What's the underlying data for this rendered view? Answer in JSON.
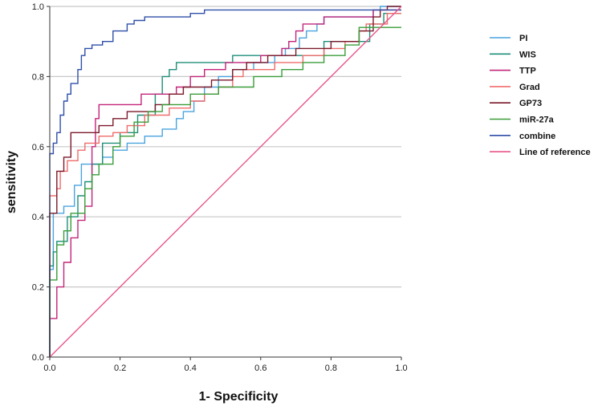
{
  "chart_data": {
    "type": "line",
    "title": "",
    "xlabel": "1- Specificity",
    "ylabel": "sensitivity",
    "xlim": [
      0,
      1
    ],
    "ylim": [
      0,
      1
    ],
    "grid": "horizontal",
    "legend_position": "right",
    "xticks": [
      "0.0",
      "0.2",
      "0.4",
      "0.6",
      "0.8",
      "1.0"
    ],
    "yticks": [
      "0.0",
      "0.2",
      "0.4",
      "0.6",
      "0.8",
      "1.0"
    ],
    "series": [
      {
        "name": "PI",
        "color": "#4aa3df",
        "points": [
          [
            0,
            0
          ],
          [
            0,
            0.25
          ],
          [
            0.01,
            0.25
          ],
          [
            0.01,
            0.41
          ],
          [
            0.04,
            0.41
          ],
          [
            0.04,
            0.43
          ],
          [
            0.07,
            0.43
          ],
          [
            0.07,
            0.49
          ],
          [
            0.09,
            0.49
          ],
          [
            0.09,
            0.55
          ],
          [
            0.15,
            0.55
          ],
          [
            0.15,
            0.57
          ],
          [
            0.18,
            0.57
          ],
          [
            0.18,
            0.59
          ],
          [
            0.22,
            0.59
          ],
          [
            0.22,
            0.61
          ],
          [
            0.27,
            0.61
          ],
          [
            0.27,
            0.63
          ],
          [
            0.32,
            0.63
          ],
          [
            0.32,
            0.65
          ],
          [
            0.36,
            0.65
          ],
          [
            0.36,
            0.68
          ],
          [
            0.38,
            0.68
          ],
          [
            0.38,
            0.7
          ],
          [
            0.41,
            0.7
          ],
          [
            0.41,
            0.73
          ],
          [
            0.44,
            0.73
          ],
          [
            0.44,
            0.77
          ],
          [
            0.48,
            0.77
          ],
          [
            0.48,
            0.8
          ],
          [
            0.52,
            0.8
          ],
          [
            0.52,
            0.82
          ],
          [
            0.58,
            0.82
          ],
          [
            0.58,
            0.84
          ],
          [
            0.64,
            0.84
          ],
          [
            0.64,
            0.86
          ],
          [
            0.67,
            0.86
          ],
          [
            0.67,
            0.88
          ],
          [
            0.71,
            0.88
          ],
          [
            0.71,
            0.91
          ],
          [
            0.73,
            0.91
          ],
          [
            0.73,
            0.93
          ],
          [
            0.76,
            0.93
          ],
          [
            0.76,
            0.95
          ],
          [
            0.78,
            0.95
          ],
          [
            0.78,
            0.97
          ],
          [
            0.92,
            0.97
          ],
          [
            0.92,
            0.99
          ],
          [
            0.94,
            0.99
          ],
          [
            0.94,
            1.0
          ],
          [
            1.0,
            1.0
          ]
        ]
      },
      {
        "name": "WIS",
        "color": "#1e8f7a",
        "points": [
          [
            0,
            0
          ],
          [
            0,
            0.26
          ],
          [
            0.01,
            0.26
          ],
          [
            0.01,
            0.3
          ],
          [
            0.02,
            0.3
          ],
          [
            0.02,
            0.33
          ],
          [
            0.05,
            0.33
          ],
          [
            0.05,
            0.4
          ],
          [
            0.08,
            0.4
          ],
          [
            0.08,
            0.46
          ],
          [
            0.1,
            0.46
          ],
          [
            0.1,
            0.5
          ],
          [
            0.12,
            0.5
          ],
          [
            0.12,
            0.55
          ],
          [
            0.15,
            0.55
          ],
          [
            0.15,
            0.61
          ],
          [
            0.2,
            0.61
          ],
          [
            0.2,
            0.64
          ],
          [
            0.25,
            0.64
          ],
          [
            0.25,
            0.69
          ],
          [
            0.3,
            0.69
          ],
          [
            0.3,
            0.75
          ],
          [
            0.32,
            0.75
          ],
          [
            0.32,
            0.8
          ],
          [
            0.34,
            0.8
          ],
          [
            0.34,
            0.82
          ],
          [
            0.36,
            0.82
          ],
          [
            0.36,
            0.84
          ],
          [
            0.52,
            0.84
          ],
          [
            0.52,
            0.86
          ],
          [
            0.78,
            0.86
          ],
          [
            0.78,
            0.9
          ],
          [
            0.91,
            0.9
          ],
          [
            0.91,
            0.95
          ],
          [
            0.95,
            0.95
          ],
          [
            0.95,
            0.98
          ],
          [
            1.0,
            0.98
          ]
        ]
      },
      {
        "name": "TTP",
        "color": "#c2257a",
        "points": [
          [
            0,
            0
          ],
          [
            0,
            0.11
          ],
          [
            0.02,
            0.11
          ],
          [
            0.02,
            0.2
          ],
          [
            0.04,
            0.2
          ],
          [
            0.04,
            0.27
          ],
          [
            0.06,
            0.27
          ],
          [
            0.06,
            0.34
          ],
          [
            0.08,
            0.34
          ],
          [
            0.08,
            0.39
          ],
          [
            0.1,
            0.39
          ],
          [
            0.1,
            0.43
          ],
          [
            0.12,
            0.43
          ],
          [
            0.12,
            0.6
          ],
          [
            0.13,
            0.6
          ],
          [
            0.13,
            0.68
          ],
          [
            0.14,
            0.68
          ],
          [
            0.14,
            0.72
          ],
          [
            0.26,
            0.72
          ],
          [
            0.26,
            0.75
          ],
          [
            0.36,
            0.75
          ],
          [
            0.36,
            0.77
          ],
          [
            0.4,
            0.77
          ],
          [
            0.4,
            0.8
          ],
          [
            0.44,
            0.8
          ],
          [
            0.44,
            0.82
          ],
          [
            0.5,
            0.82
          ],
          [
            0.5,
            0.84
          ],
          [
            0.6,
            0.84
          ],
          [
            0.6,
            0.86
          ],
          [
            0.66,
            0.86
          ],
          [
            0.66,
            0.88
          ],
          [
            0.68,
            0.88
          ],
          [
            0.68,
            0.9
          ],
          [
            0.7,
            0.9
          ],
          [
            0.7,
            0.93
          ],
          [
            0.72,
            0.93
          ],
          [
            0.72,
            0.95
          ],
          [
            0.78,
            0.95
          ],
          [
            0.78,
            0.97
          ],
          [
            0.92,
            0.97
          ],
          [
            0.92,
            0.99
          ],
          [
            1.0,
            0.99
          ]
        ]
      },
      {
        "name": "Grad",
        "color": "#f06b6b",
        "points": [
          [
            0,
            0
          ],
          [
            0,
            0.46
          ],
          [
            0.02,
            0.46
          ],
          [
            0.02,
            0.48
          ],
          [
            0.03,
            0.48
          ],
          [
            0.03,
            0.53
          ],
          [
            0.05,
            0.53
          ],
          [
            0.05,
            0.56
          ],
          [
            0.08,
            0.56
          ],
          [
            0.08,
            0.59
          ],
          [
            0.1,
            0.59
          ],
          [
            0.1,
            0.61
          ],
          [
            0.14,
            0.61
          ],
          [
            0.14,
            0.63
          ],
          [
            0.18,
            0.63
          ],
          [
            0.18,
            0.64
          ],
          [
            0.22,
            0.64
          ],
          [
            0.22,
            0.66
          ],
          [
            0.27,
            0.66
          ],
          [
            0.27,
            0.69
          ],
          [
            0.34,
            0.69
          ],
          [
            0.34,
            0.71
          ],
          [
            0.4,
            0.71
          ],
          [
            0.4,
            0.73
          ],
          [
            0.44,
            0.73
          ],
          [
            0.44,
            0.75
          ],
          [
            0.48,
            0.75
          ],
          [
            0.48,
            0.77
          ],
          [
            0.52,
            0.77
          ],
          [
            0.52,
            0.8
          ],
          [
            0.55,
            0.8
          ],
          [
            0.55,
            0.82
          ],
          [
            0.64,
            0.82
          ],
          [
            0.64,
            0.84
          ],
          [
            0.72,
            0.84
          ],
          [
            0.72,
            0.86
          ],
          [
            0.78,
            0.86
          ],
          [
            0.78,
            0.88
          ],
          [
            0.84,
            0.88
          ],
          [
            0.84,
            0.9
          ],
          [
            0.88,
            0.9
          ],
          [
            0.88,
            0.93
          ],
          [
            0.9,
            0.93
          ],
          [
            0.9,
            0.95
          ],
          [
            0.96,
            0.95
          ],
          [
            0.96,
            0.98
          ],
          [
            1.0,
            0.98
          ]
        ]
      },
      {
        "name": "GP73",
        "color": "#7b1a2a",
        "points": [
          [
            0,
            0
          ],
          [
            0,
            0.41
          ],
          [
            0.02,
            0.41
          ],
          [
            0.02,
            0.53
          ],
          [
            0.04,
            0.53
          ],
          [
            0.04,
            0.57
          ],
          [
            0.06,
            0.57
          ],
          [
            0.06,
            0.64
          ],
          [
            0.14,
            0.64
          ],
          [
            0.14,
            0.66
          ],
          [
            0.18,
            0.66
          ],
          [
            0.18,
            0.68
          ],
          [
            0.22,
            0.68
          ],
          [
            0.22,
            0.7
          ],
          [
            0.3,
            0.7
          ],
          [
            0.3,
            0.72
          ],
          [
            0.34,
            0.72
          ],
          [
            0.34,
            0.75
          ],
          [
            0.38,
            0.75
          ],
          [
            0.38,
            0.77
          ],
          [
            0.46,
            0.77
          ],
          [
            0.46,
            0.79
          ],
          [
            0.52,
            0.79
          ],
          [
            0.52,
            0.82
          ],
          [
            0.56,
            0.82
          ],
          [
            0.56,
            0.84
          ],
          [
            0.62,
            0.84
          ],
          [
            0.62,
            0.86
          ],
          [
            0.7,
            0.86
          ],
          [
            0.7,
            0.88
          ],
          [
            0.8,
            0.88
          ],
          [
            0.8,
            0.9
          ],
          [
            0.88,
            0.9
          ],
          [
            0.88,
            0.93
          ],
          [
            0.92,
            0.93
          ],
          [
            0.92,
            0.97
          ],
          [
            0.94,
            0.97
          ],
          [
            0.94,
            0.99
          ],
          [
            0.96,
            0.99
          ],
          [
            0.96,
            1.0
          ],
          [
            1.0,
            1.0
          ]
        ]
      },
      {
        "name": "miR-27a",
        "color": "#3a9d3a",
        "points": [
          [
            0,
            0
          ],
          [
            0,
            0.22
          ],
          [
            0.02,
            0.22
          ],
          [
            0.02,
            0.32
          ],
          [
            0.04,
            0.32
          ],
          [
            0.04,
            0.36
          ],
          [
            0.06,
            0.36
          ],
          [
            0.06,
            0.41
          ],
          [
            0.1,
            0.41
          ],
          [
            0.1,
            0.48
          ],
          [
            0.12,
            0.48
          ],
          [
            0.12,
            0.52
          ],
          [
            0.14,
            0.52
          ],
          [
            0.14,
            0.55
          ],
          [
            0.18,
            0.55
          ],
          [
            0.18,
            0.6
          ],
          [
            0.2,
            0.6
          ],
          [
            0.2,
            0.63
          ],
          [
            0.24,
            0.63
          ],
          [
            0.24,
            0.67
          ],
          [
            0.28,
            0.67
          ],
          [
            0.28,
            0.7
          ],
          [
            0.32,
            0.7
          ],
          [
            0.32,
            0.72
          ],
          [
            0.4,
            0.72
          ],
          [
            0.4,
            0.75
          ],
          [
            0.48,
            0.75
          ],
          [
            0.48,
            0.77
          ],
          [
            0.58,
            0.77
          ],
          [
            0.58,
            0.8
          ],
          [
            0.66,
            0.8
          ],
          [
            0.66,
            0.82
          ],
          [
            0.72,
            0.82
          ],
          [
            0.72,
            0.84
          ],
          [
            0.78,
            0.84
          ],
          [
            0.78,
            0.86
          ],
          [
            0.84,
            0.86
          ],
          [
            0.84,
            0.89
          ],
          [
            0.88,
            0.89
          ],
          [
            0.88,
            0.94
          ],
          [
            1.0,
            0.94
          ]
        ]
      },
      {
        "name": "combine",
        "color": "#2f4fa8",
        "points": [
          [
            0,
            0
          ],
          [
            0,
            0.58
          ],
          [
            0.01,
            0.58
          ],
          [
            0.01,
            0.61
          ],
          [
            0.02,
            0.61
          ],
          [
            0.02,
            0.64
          ],
          [
            0.03,
            0.64
          ],
          [
            0.03,
            0.69
          ],
          [
            0.04,
            0.69
          ],
          [
            0.04,
            0.73
          ],
          [
            0.05,
            0.73
          ],
          [
            0.05,
            0.75
          ],
          [
            0.06,
            0.75
          ],
          [
            0.06,
            0.78
          ],
          [
            0.08,
            0.78
          ],
          [
            0.08,
            0.82
          ],
          [
            0.09,
            0.82
          ],
          [
            0.09,
            0.86
          ],
          [
            0.1,
            0.86
          ],
          [
            0.1,
            0.88
          ],
          [
            0.12,
            0.88
          ],
          [
            0.12,
            0.89
          ],
          [
            0.15,
            0.89
          ],
          [
            0.15,
            0.9
          ],
          [
            0.18,
            0.9
          ],
          [
            0.18,
            0.93
          ],
          [
            0.22,
            0.93
          ],
          [
            0.22,
            0.95
          ],
          [
            0.24,
            0.95
          ],
          [
            0.24,
            0.96
          ],
          [
            0.27,
            0.96
          ],
          [
            0.27,
            0.97
          ],
          [
            0.4,
            0.97
          ],
          [
            0.4,
            0.98
          ],
          [
            0.44,
            0.98
          ],
          [
            0.44,
            0.99
          ],
          [
            1.0,
            0.99
          ]
        ]
      },
      {
        "name": "Line of reference",
        "color": "#e8558c",
        "points": [
          [
            0,
            0
          ],
          [
            1,
            1
          ]
        ]
      }
    ]
  }
}
